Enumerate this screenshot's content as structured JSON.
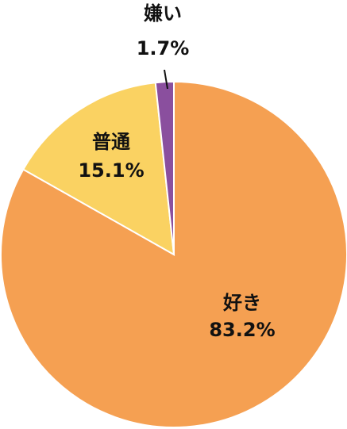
{
  "chart_data": {
    "type": "pie",
    "categories": [
      "好き",
      "普通",
      "嫌い"
    ],
    "values": [
      83.2,
      15.1,
      1.7
    ],
    "value_labels": [
      "83.2%",
      "15.1%",
      "1.7%"
    ],
    "colors": [
      "#f5a052",
      "#fad262",
      "#8a4f9e"
    ]
  }
}
